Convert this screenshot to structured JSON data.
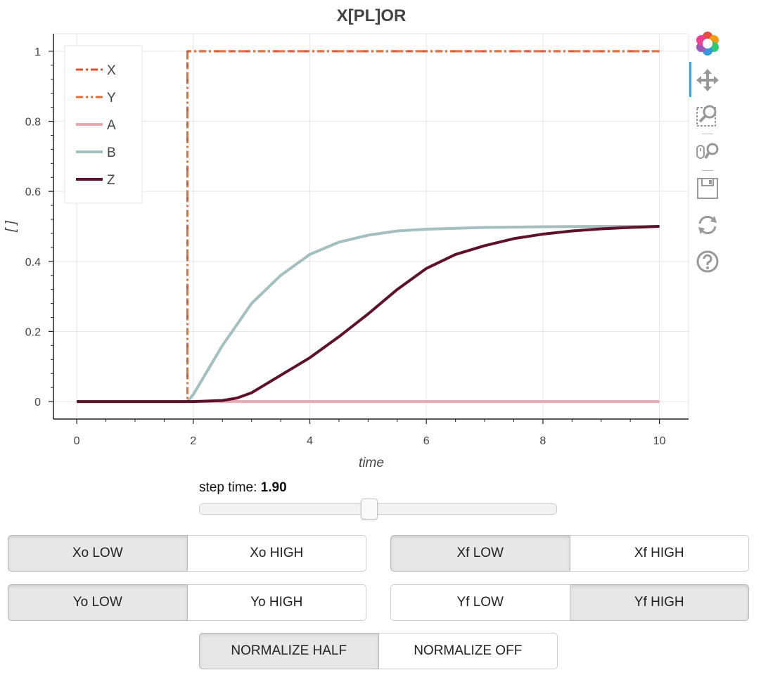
{
  "chart_data": {
    "type": "line",
    "title": "X[PL]OR",
    "xlabel": "time",
    "ylabel": "[ ]",
    "xlim": [
      -0.4,
      10.5
    ],
    "ylim": [
      -0.05,
      1.05
    ],
    "x_ticks": [
      0,
      2,
      4,
      6,
      8,
      10
    ],
    "y_ticks": [
      0,
      0.2,
      0.4,
      0.6,
      0.8,
      1
    ],
    "x_tick_labels": [
      "0",
      "2",
      "4",
      "6",
      "8",
      "10"
    ],
    "y_tick_labels": [
      "0",
      "0.2",
      "0.4",
      "0.6",
      "0.8",
      "1"
    ],
    "grid": true,
    "legend_position": "top-left",
    "series": [
      {
        "name": "X",
        "color": "#e8492b",
        "dash": "dashdot",
        "x": [
          0,
          1.9,
          1.9,
          10
        ],
        "y": [
          0,
          0,
          1,
          1
        ]
      },
      {
        "name": "Y",
        "color": "#f06a2e",
        "dash": "dashdotdot",
        "x": [
          0,
          1.9,
          1.9,
          10
        ],
        "y": [
          0,
          0,
          1,
          1
        ]
      },
      {
        "name": "A",
        "color": "#e8a9b3",
        "dash": "solid",
        "x": [
          0,
          2,
          3,
          4,
          6,
          8,
          10
        ],
        "y": [
          0,
          0,
          0,
          0,
          0,
          0,
          0
        ]
      },
      {
        "name": "B",
        "color": "#a3bfbf",
        "dash": "solid",
        "x": [
          0,
          1.9,
          2.0,
          2.25,
          2.5,
          2.75,
          3.0,
          3.5,
          4.0,
          4.5,
          5.0,
          5.5,
          6.0,
          7.0,
          8.0,
          9.0,
          10.0
        ],
        "y": [
          0,
          0,
          0.02,
          0.09,
          0.16,
          0.22,
          0.28,
          0.36,
          0.42,
          0.455,
          0.475,
          0.487,
          0.492,
          0.497,
          0.499,
          0.5,
          0.5
        ]
      },
      {
        "name": "Z",
        "color": "#5e1128",
        "dash": "solid",
        "x": [
          0,
          2.0,
          2.5,
          2.75,
          3.0,
          3.25,
          3.5,
          3.75,
          4.0,
          4.5,
          5.0,
          5.5,
          6.0,
          6.5,
          7.0,
          7.5,
          8.0,
          8.5,
          9.0,
          9.5,
          10.0
        ],
        "y": [
          0,
          0,
          0.003,
          0.01,
          0.025,
          0.05,
          0.075,
          0.1,
          0.125,
          0.185,
          0.25,
          0.32,
          0.38,
          0.42,
          0.445,
          0.465,
          0.478,
          0.487,
          0.493,
          0.497,
          0.5
        ]
      }
    ]
  },
  "slider": {
    "label": "step time: ",
    "value_text": "1.90",
    "value": 1.9,
    "min": 0,
    "max": 4
  },
  "buttons": {
    "xo": {
      "low": "Xo LOW",
      "high": "Xo HIGH",
      "active": "low"
    },
    "xf": {
      "low": "Xf LOW",
      "high": "Xf HIGH",
      "active": "low"
    },
    "yo": {
      "low": "Yo LOW",
      "high": "Yo HIGH",
      "active": "low"
    },
    "yf": {
      "low": "Yf LOW",
      "high": "Yf HIGH",
      "active": "high"
    },
    "normalize": {
      "half": "NORMALIZE HALF",
      "off": "NORMALIZE OFF",
      "active": "half"
    }
  },
  "toolbar": {
    "tools": [
      "bokeh-logo-icon",
      "pan-icon",
      "box-zoom-icon",
      "wheel-zoom-icon",
      "save-icon",
      "reset-icon",
      "help-icon"
    ],
    "active_tool": "pan-icon"
  }
}
